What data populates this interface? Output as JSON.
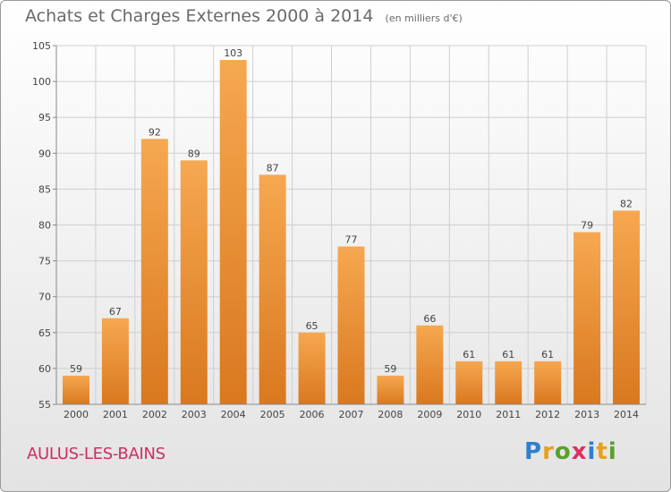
{
  "header": {
    "title": "Achats et Charges Externes 2000 à 2014",
    "unit": "(en milliers d'€)"
  },
  "footer": {
    "commune": "AULUS-LES-BAINS",
    "logo_letters": [
      "P",
      "r",
      "o",
      "x",
      "i",
      "t",
      "i"
    ],
    "logo_colors": [
      "#2f7fd0",
      "#e8a020",
      "#5aa02c",
      "#e03060",
      "#2f7fd0",
      "#e8a020",
      "#5aa02c"
    ]
  },
  "colors": {
    "bar_top": "#f6a850",
    "bar_bottom": "#d9781f",
    "grid": "#cfcfcf",
    "text": "#444444",
    "commune": "#cc2e62"
  },
  "chart_data": {
    "type": "bar",
    "title": "Achats et Charges Externes 2000 à 2014",
    "xlabel": "",
    "ylabel": "",
    "categories": [
      "2000",
      "2001",
      "2002",
      "2003",
      "2004",
      "2005",
      "2006",
      "2007",
      "2008",
      "2009",
      "2010",
      "2011",
      "2012",
      "2013",
      "2014"
    ],
    "values": [
      59,
      67,
      92,
      89,
      103,
      87,
      65,
      77,
      59,
      66,
      61,
      61,
      61,
      79,
      82
    ],
    "ylim": [
      55,
      105
    ],
    "yticks": [
      55,
      60,
      65,
      70,
      75,
      80,
      85,
      90,
      95,
      100,
      105
    ],
    "grid": true,
    "data_labels": true
  }
}
